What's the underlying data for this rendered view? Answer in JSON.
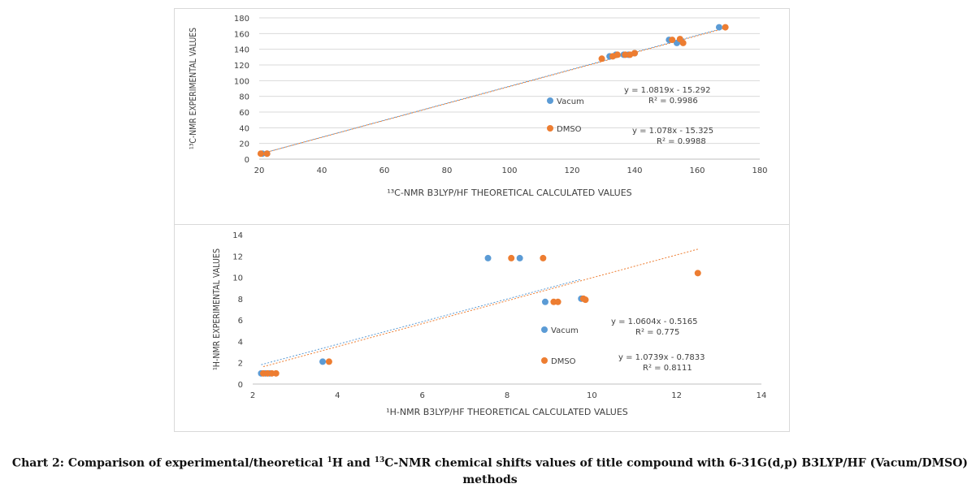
{
  "colors": {
    "vacum": "#5b9bd5",
    "dmso": "#ed7d31",
    "grid": "#d9d9d9",
    "axis": "#bfbfbf",
    "text": "#404040"
  },
  "caption": {
    "prefix": "Chart 2: Comparison of experimental/theoretical ",
    "sup1": "1",
    "mid1": "H and ",
    "sup2": "13",
    "mid2": "C-NMR chemical shifts values of title compound with 6-31G(d,p) B3LYP/HF (Vacum/DMSO)",
    "line2": "methods"
  },
  "chart_data": [
    {
      "type": "scatter",
      "xlabel": "¹³C-NMR B3LYP/HF THEORETICAL CALCULATED VALUES",
      "ylabel": "¹³C-NMR EXPERIMENTAL VALUES",
      "xlim": [
        20,
        180
      ],
      "ylim": [
        0,
        180
      ],
      "xticks": [
        20,
        40,
        60,
        80,
        100,
        120,
        140,
        160,
        180
      ],
      "yticks": [
        0,
        20,
        40,
        60,
        80,
        100,
        120,
        140,
        160,
        180
      ],
      "grid": true,
      "series": [
        {
          "name": "Vacum",
          "color": "#5b9bd5",
          "points": [
            [
              21,
              7
            ],
            [
              22.5,
              7
            ],
            [
              132,
              131
            ],
            [
              134,
              133
            ],
            [
              136.5,
              133
            ],
            [
              138,
              133
            ],
            [
              140,
              135
            ],
            [
              151,
              152
            ],
            [
              153.5,
              148
            ],
            [
              155,
              150
            ],
            [
              167,
              168
            ]
          ],
          "trendline": {
            "slope": 1.0819,
            "intercept": -15.292
          },
          "equation": "y = 1.0819x - 15.292",
          "r2": "R² = 0.9986"
        },
        {
          "name": "DMSO",
          "color": "#ed7d31",
          "points": [
            [
              20.5,
              7
            ],
            [
              22.5,
              7
            ],
            [
              129.5,
              128
            ],
            [
              133,
              131
            ],
            [
              134.5,
              133
            ],
            [
              137,
              133
            ],
            [
              138.5,
              133
            ],
            [
              140,
              135
            ],
            [
              152,
              152
            ],
            [
              154.5,
              153
            ],
            [
              155.5,
              148
            ],
            [
              169,
              168
            ]
          ],
          "trendline": {
            "slope": 1.078,
            "intercept": -15.325
          },
          "equation": "y = 1.078x - 15.325",
          "r2": "R² = 0.9988"
        }
      ]
    },
    {
      "type": "scatter",
      "xlabel": "¹H-NMR B3LYP/HF THEORETICAL CALCULATED VALUES",
      "ylabel": "¹H-NMR EXPERIMENTAL VALUES",
      "xlim": [
        2,
        14
      ],
      "ylim": [
        0,
        14
      ],
      "xticks": [
        2,
        4,
        6,
        8,
        10,
        12,
        14
      ],
      "yticks": [
        0,
        2,
        4,
        6,
        8,
        10,
        12,
        14
      ],
      "grid": false,
      "series": [
        {
          "name": "Vacum",
          "color": "#5b9bd5",
          "points": [
            [
              2.2,
              1
            ],
            [
              2.3,
              1
            ],
            [
              2.4,
              1
            ],
            [
              3.65,
              2.1
            ],
            [
              7.55,
              11.8
            ],
            [
              8.3,
              11.8
            ],
            [
              8.9,
              7.7
            ],
            [
              9.75,
              8
            ]
          ],
          "trendline": {
            "slope": 1.0604,
            "intercept": -0.5165
          },
          "equation": "y = 1.0604x - 0.5165",
          "r2": "R² = 0.775"
        },
        {
          "name": "DMSO",
          "color": "#ed7d31",
          "points": [
            [
              2.25,
              1
            ],
            [
              2.35,
              1
            ],
            [
              2.45,
              1
            ],
            [
              2.55,
              1
            ],
            [
              3.8,
              2.1
            ],
            [
              8.1,
              11.8
            ],
            [
              8.85,
              11.8
            ],
            [
              9.1,
              7.7
            ],
            [
              9.2,
              7.7
            ],
            [
              9.8,
              8
            ],
            [
              9.85,
              7.9
            ],
            [
              12.5,
              10.4
            ]
          ],
          "trendline": {
            "slope": 1.0739,
            "intercept": -0.7833
          },
          "equation": "y = 1.0739x - 0.7833",
          "r2": "R² = 0.8111"
        }
      ]
    }
  ]
}
